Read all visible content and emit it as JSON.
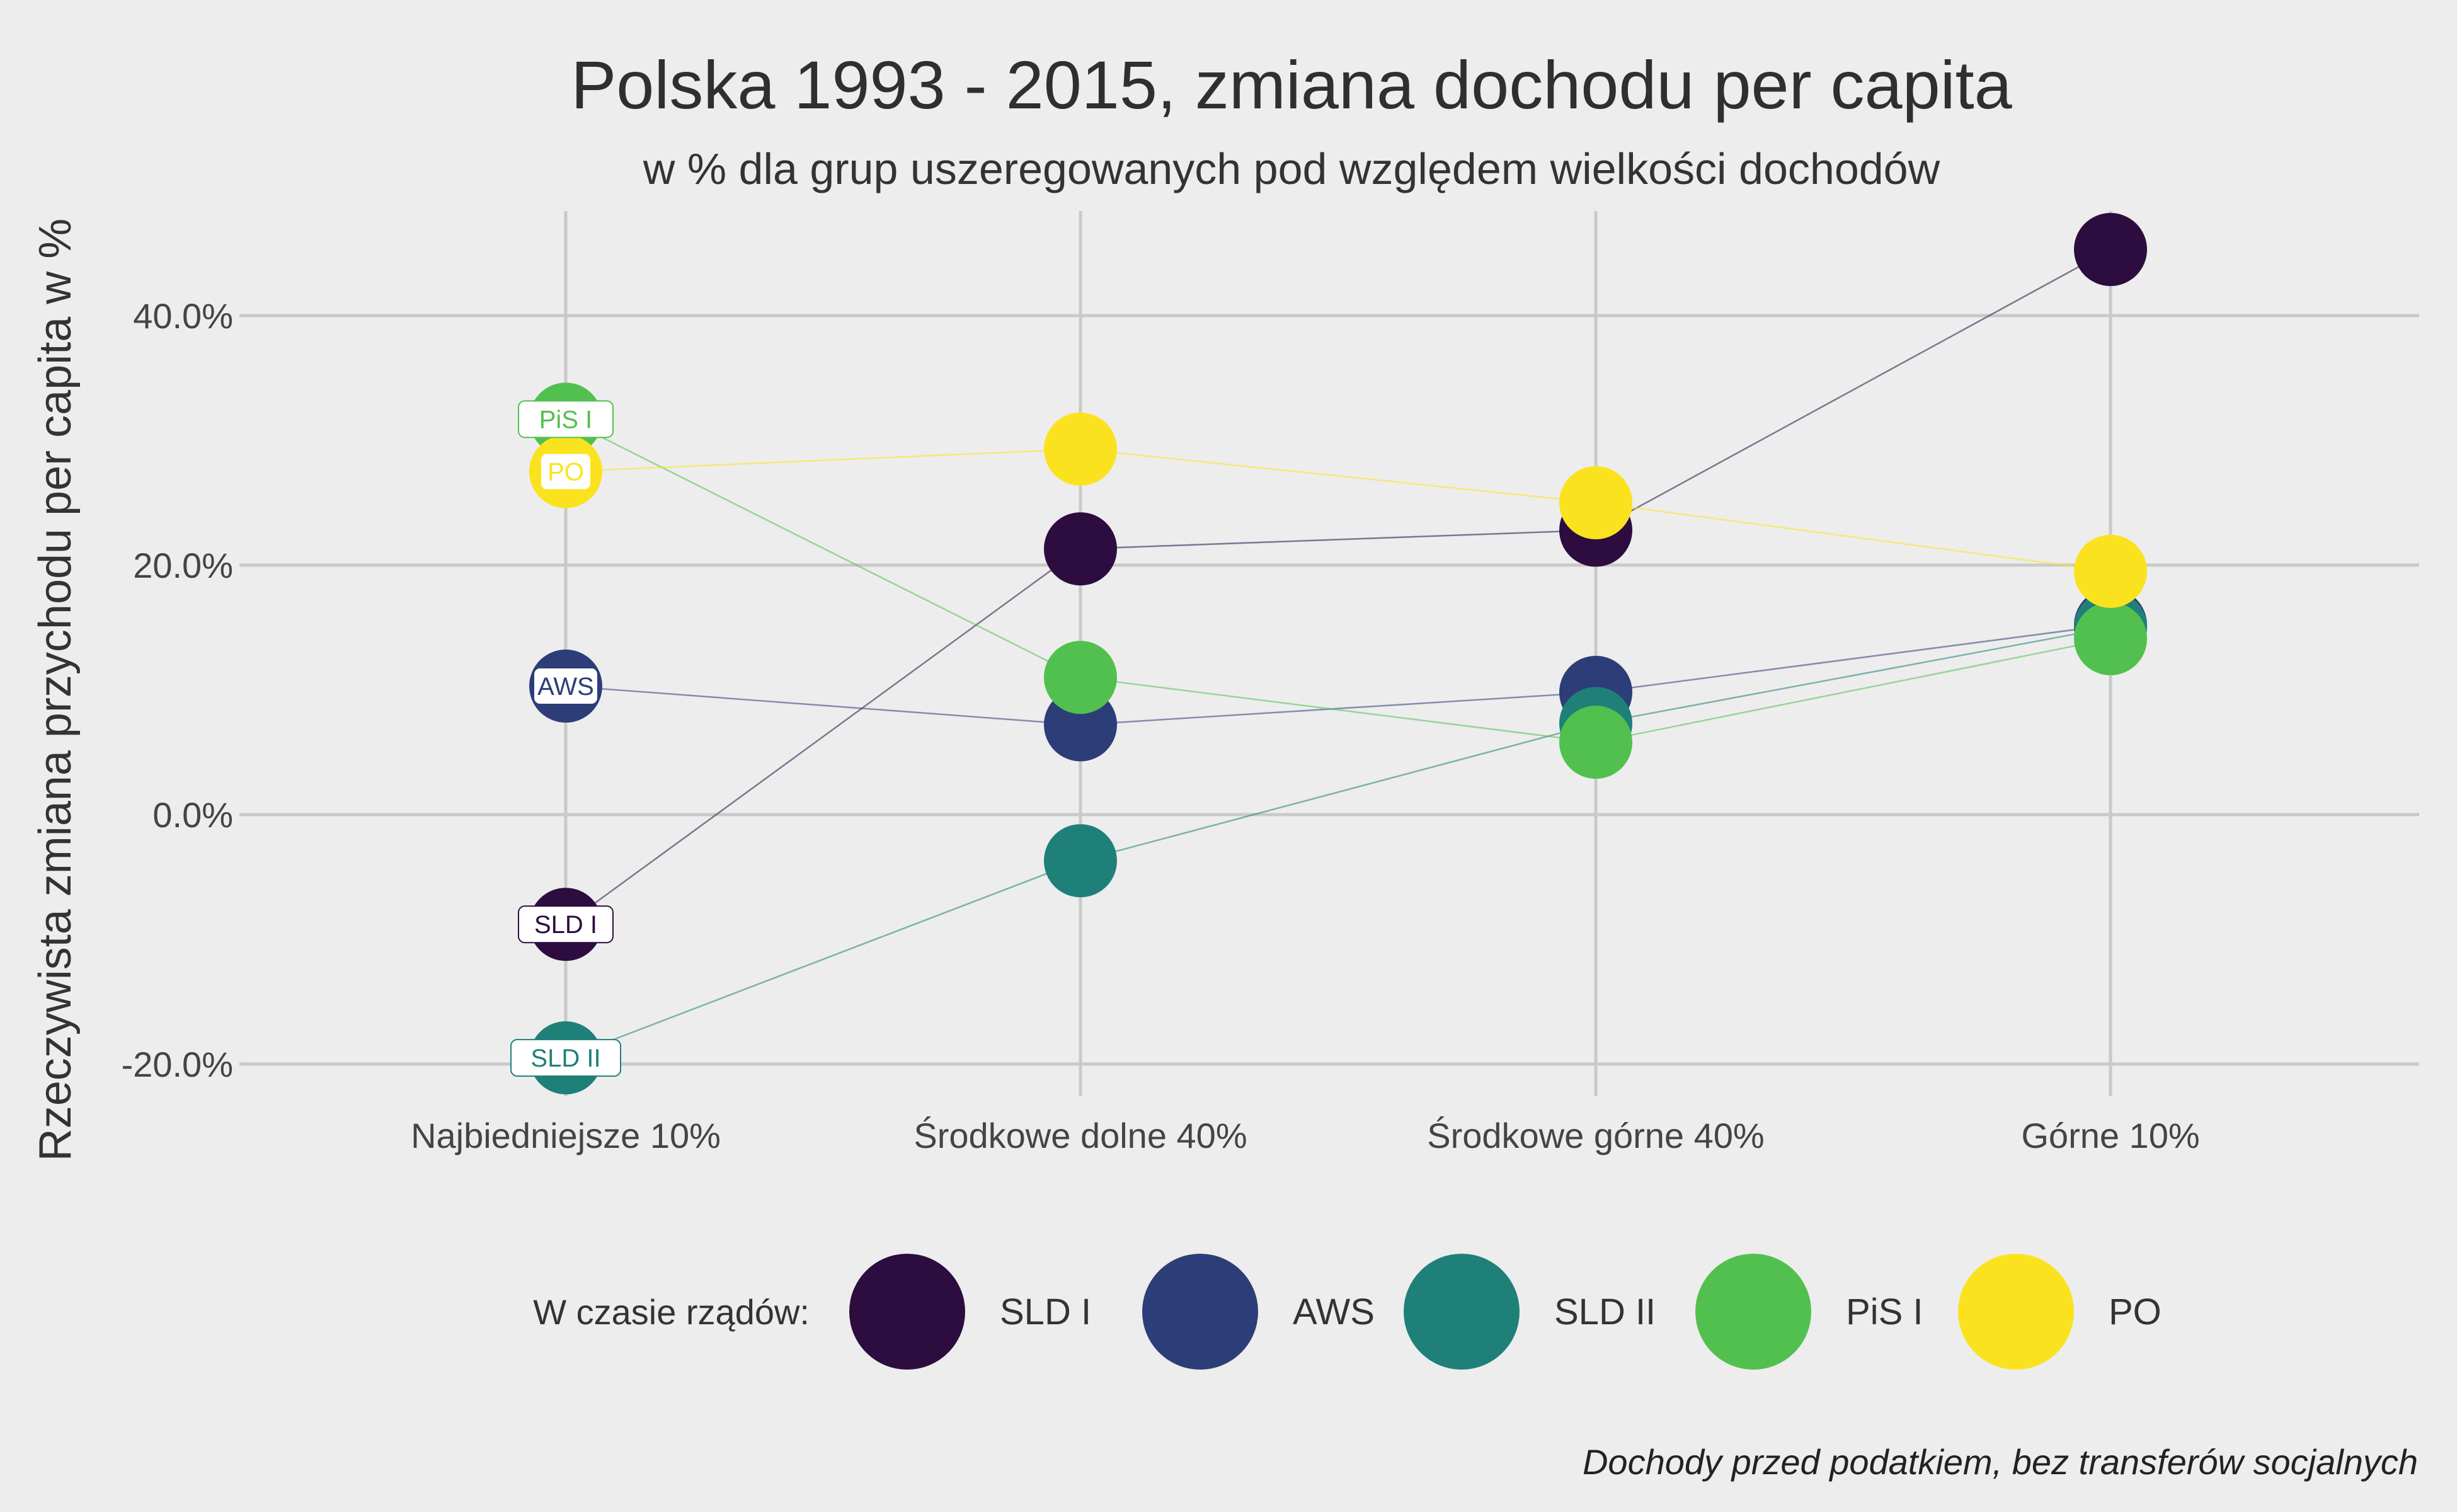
{
  "chart_data": {
    "type": "scatter",
    "title": "Polska 1993 - 2015, zmiana dochodu per capita",
    "subtitle": "w % dla grup uszeregowanych pod względem wielkości dochodów",
    "ylabel": "Rzeczywista zmiana przychodu per capita w %",
    "xlabel": "",
    "categories": [
      "Najbiedniejsze 10%",
      "Środkowe dolne 40%",
      "Środkowe górne 40%",
      "Górne 10%"
    ],
    "y_ticks": [
      40,
      20,
      0,
      -20
    ],
    "y_tick_labels": [
      "40.0%",
      "20.0%",
      "0.0%",
      "-20.0%"
    ],
    "ylim": [
      -23,
      49
    ],
    "grid": true,
    "legend": {
      "title": "W czasie rządów:",
      "position": "bottom"
    },
    "series": [
      {
        "name": "SLD I",
        "color": "#2d0c40",
        "values": [
          -8.8,
          21.3,
          22.8,
          45.3
        ]
      },
      {
        "name": "AWS",
        "color": "#2d3d78",
        "values": [
          10.3,
          7.2,
          9.8,
          15.2
        ]
      },
      {
        "name": "SLD II",
        "color": "#1f8079",
        "values": [
          -19.5,
          -3.7,
          7.3,
          15.0
        ]
      },
      {
        "name": "PiS I",
        "color": "#52c04e",
        "values": [
          31.7,
          11.0,
          5.8,
          14.1
        ]
      },
      {
        "name": "PO",
        "color": "#fae31e",
        "values": [
          27.5,
          29.3,
          25.0,
          19.5
        ]
      }
    ],
    "caption": "Dochody przed podatkiem, bez transferów socjalnych"
  }
}
